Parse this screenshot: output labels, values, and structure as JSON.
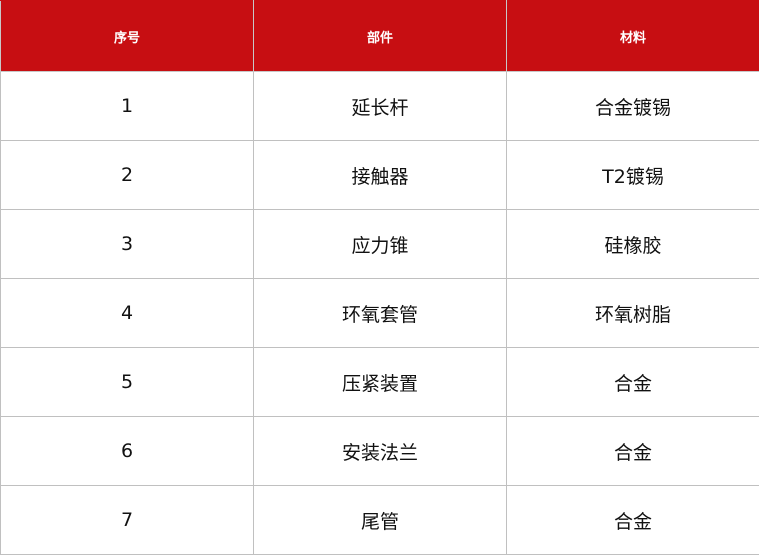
{
  "colors": {
    "header_bg": "#c70e12",
    "header_text": "#ffffff",
    "border": "#c0c0c0"
  },
  "headers": [
    "序号",
    "部件",
    "材料"
  ],
  "rows": [
    [
      "1",
      "延长杆",
      "合金镀锡"
    ],
    [
      "2",
      "接触器",
      "T2镀锡"
    ],
    [
      "3",
      "应力锥",
      "硅橡胶"
    ],
    [
      "4",
      "环氧套管",
      "环氧树脂"
    ],
    [
      "5",
      "压紧装置",
      "合金"
    ],
    [
      "6",
      "安装法兰",
      "合金"
    ],
    [
      "7",
      "尾管",
      "合金"
    ]
  ]
}
